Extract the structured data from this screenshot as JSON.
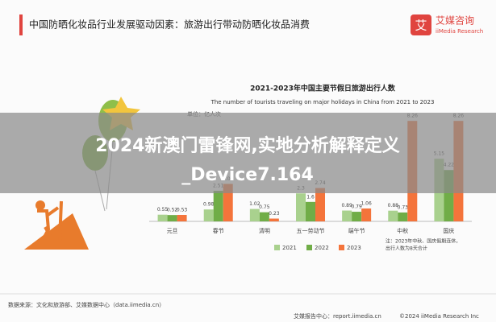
{
  "header": {
    "title": "中国防晒化妆品行业发展驱动因素：旅游出行带动防晒化妆品消费",
    "logo_cn": "艾媒咨询",
    "logo_en": "iiMedia Research",
    "logo_mark": "艾"
  },
  "banner": {
    "line1": "2024新澳门雷锋网,实地分析解释定义",
    "line2": "_Device7.164"
  },
  "chart_data": {
    "type": "bar",
    "title": "2021-2023年中国主要节假日旅游出行人数",
    "subtitle": "The number of tourists traveling on major holidays in China from 2021 to 2023",
    "unit": "单位：亿人次",
    "categories": [
      "元旦",
      "春节",
      "清明",
      "五一劳动节",
      "端午节",
      "中秋",
      "国庆"
    ],
    "series": [
      {
        "name": "2021",
        "color": "#a9d18e",
        "values": [
          0.55,
          0.98,
          1.02,
          2.3,
          0.89,
          0.88,
          5.15
        ]
      },
      {
        "name": "2022",
        "color": "#70ad47",
        "values": [
          0.52,
          2.51,
          0.75,
          1.6,
          0.79,
          0.73,
          4.22
        ]
      },
      {
        "name": "2023",
        "color": "#f4743b",
        "values": [
          0.53,
          3.08,
          0.23,
          2.74,
          1.06,
          8.26,
          8.26
        ]
      }
    ],
    "ylim": [
      0,
      9
    ],
    "note": [
      "注：2023年中秋、国庆假期连休，",
      "出行人数为8天合计"
    ]
  },
  "footer": {
    "source": "数据来源：文化和旅游部、艾媒数据中心（data.iimedia.cn）",
    "center": "艾媒报告中心：report.iimedia.cn",
    "copyright": "©2024  iiMedia Research Inc"
  }
}
